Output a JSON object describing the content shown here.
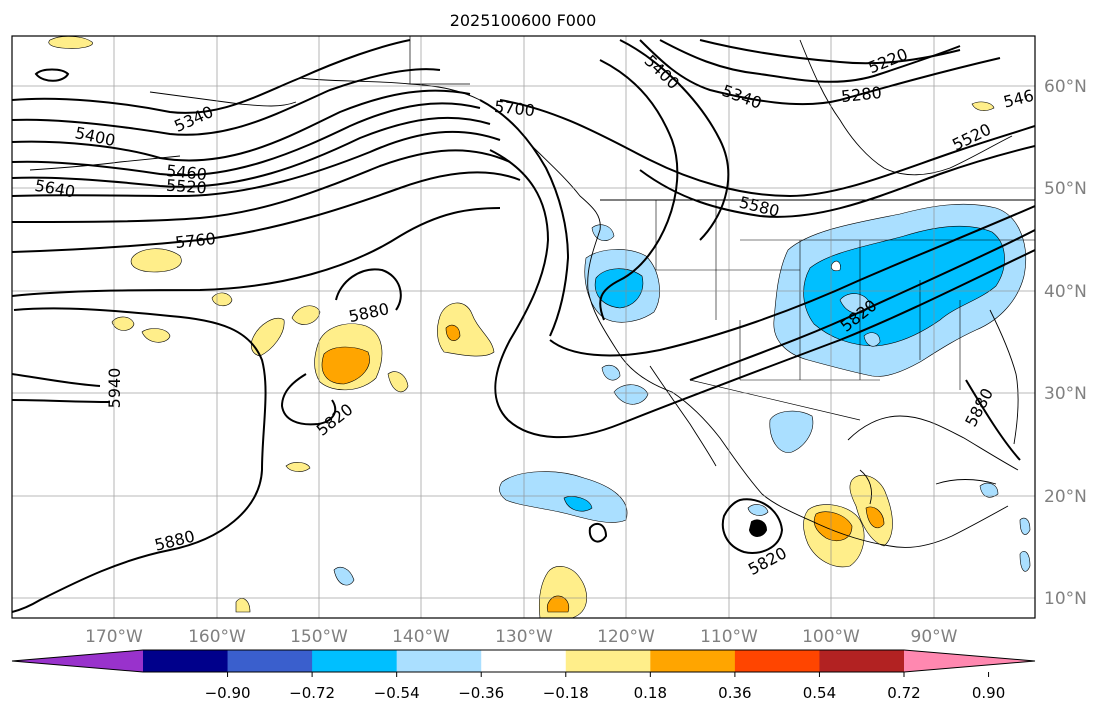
{
  "title": "2025100600 F000",
  "map": {
    "lon_labels": [
      "170°W",
      "160°W",
      "150°W",
      "140°W",
      "130°W",
      "120°W",
      "110°W",
      "100°W",
      "90°W"
    ],
    "lat_labels": [
      "10°N",
      "20°N",
      "30°N",
      "40°N",
      "50°N",
      "60°N"
    ],
    "contour_labels": [
      {
        "text": "5340",
        "id": "c5340a"
      },
      {
        "text": "5400",
        "id": "c5400a"
      },
      {
        "text": "5460",
        "id": "c5460"
      },
      {
        "text": "5520",
        "id": "c5520a"
      },
      {
        "text": "5640",
        "id": "c5640"
      },
      {
        "text": "5760",
        "id": "c5760"
      },
      {
        "text": "5700",
        "id": "c5700"
      },
      {
        "text": "5400",
        "id": "c5400b"
      },
      {
        "text": "5340",
        "id": "c5340b"
      },
      {
        "text": "5220",
        "id": "c5220"
      },
      {
        "text": "5280",
        "id": "c5280"
      },
      {
        "text": "5520",
        "id": "c5520b"
      },
      {
        "text": "546",
        "id": "c546"
      },
      {
        "text": "5580",
        "id": "c5580"
      },
      {
        "text": "5880",
        "id": "c5880a"
      },
      {
        "text": "5820",
        "id": "c5820a"
      },
      {
        "text": "5940",
        "id": "c5940"
      },
      {
        "text": "5880",
        "id": "c5880b"
      },
      {
        "text": "5820",
        "id": "c5820b"
      },
      {
        "text": "5880",
        "id": "c5880c"
      },
      {
        "text": "5820",
        "id": "c5820c"
      }
    ],
    "colors": {
      "neg_strong_purple": "#9932cc",
      "neg_navy": "#00008b",
      "neg_blue": "#3a5fcd",
      "neg_sky": "#00bfff",
      "neg_light": "#aadfff",
      "neutral": "#ffffff",
      "pos_yellow": "#ffee8a",
      "pos_orange": "#ffa500",
      "pos_red": "#ff4500",
      "pos_brick": "#b22222",
      "pos_pink": "#ff88b0"
    }
  },
  "colorbar": {
    "ticks": [
      "−0.90",
      "−0.72",
      "−0.54",
      "−0.36",
      "−0.18",
      "0.18",
      "0.36",
      "0.54",
      "0.72",
      "0.90"
    ],
    "colors": [
      "#9932cc",
      "#00008b",
      "#3a5fcd",
      "#00bfff",
      "#aadfff",
      "#ffffff",
      "#ffee8a",
      "#ffa500",
      "#ff4500",
      "#b22222",
      "#ff88b0"
    ]
  }
}
